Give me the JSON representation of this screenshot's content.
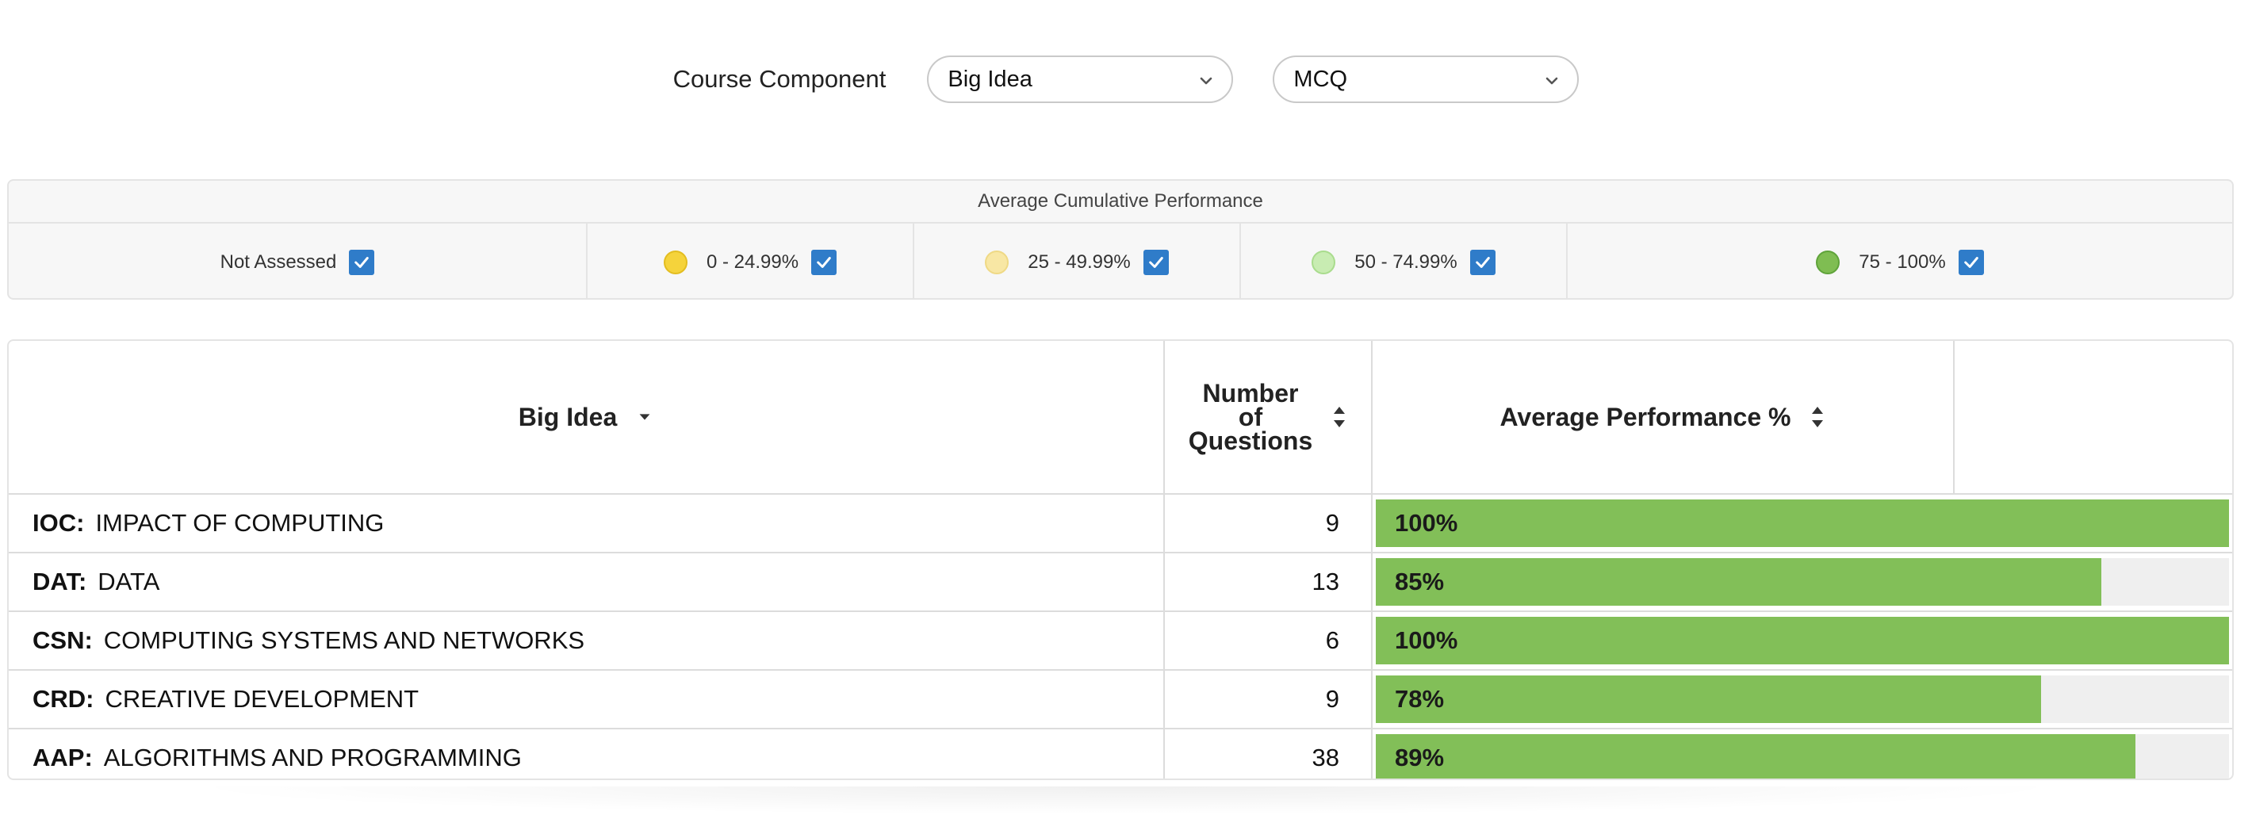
{
  "filters": {
    "label": "Course Component",
    "select1": "Big Idea",
    "select2": "MCQ"
  },
  "legend": {
    "title": "Average Cumulative Performance",
    "items": [
      {
        "label": "Not Assessed",
        "color": null,
        "checked": true
      },
      {
        "label": "0 - 24.99%",
        "color": "#f5d33b",
        "checked": true
      },
      {
        "label": "25 - 49.99%",
        "color": "#f8e7a4",
        "checked": true
      },
      {
        "label": "50 - 74.99%",
        "color": "#c8ecb2",
        "checked": true
      },
      {
        "label": "75 - 100%",
        "color": "#7fbd52",
        "checked": true
      }
    ]
  },
  "table": {
    "headers": {
      "big_idea": "Big Idea",
      "num_questions_1": "Number",
      "num_questions_2": "of",
      "num_questions_3": "Questions",
      "avg_perf": "Average Performance %"
    },
    "rows": [
      {
        "code": "IOC:",
        "name": "IMPACT OF COMPUTING",
        "questions": "9",
        "performance": 100,
        "performance_label": "100%"
      },
      {
        "code": "DAT:",
        "name": "DATA",
        "questions": "13",
        "performance": 85,
        "performance_label": "85%"
      },
      {
        "code": "CSN:",
        "name": "COMPUTING SYSTEMS AND NETWORKS",
        "questions": "6",
        "performance": 100,
        "performance_label": "100%"
      },
      {
        "code": "CRD:",
        "name": "CREATIVE DEVELOPMENT",
        "questions": "9",
        "performance": 78,
        "performance_label": "78%"
      },
      {
        "code": "AAP:",
        "name": "ALGORITHMS AND PROGRAMMING",
        "questions": "38",
        "performance": 89,
        "performance_label": "89%"
      }
    ],
    "bar_color": "#82bf58",
    "bar_track_color": "#efefef"
  },
  "accent": "#2f7cc9"
}
